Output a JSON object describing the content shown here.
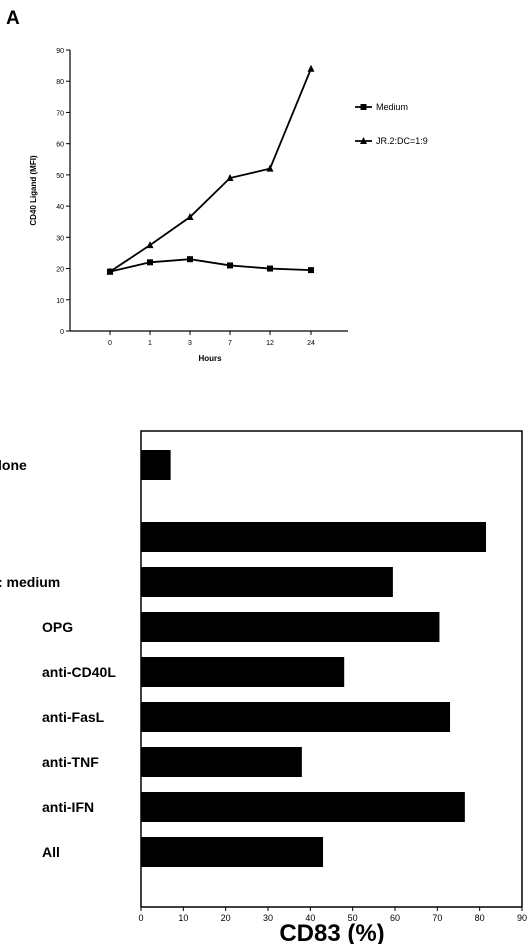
{
  "panel_label": "A",
  "chart_data": [
    {
      "type": "line",
      "title": "",
      "xlabel": "Hours",
      "ylabel": "CD40 Ligand (MFI)",
      "x": [
        "0",
        "1",
        "3",
        "7",
        "12",
        "24"
      ],
      "ylim": [
        0,
        90
      ],
      "yticks": [
        "0",
        "10",
        "20",
        "30",
        "40",
        "50",
        "60",
        "70",
        "80",
        "90"
      ],
      "grid": false,
      "legend_position": "right",
      "series": [
        {
          "name": "Medium",
          "marker": "square",
          "values": [
            19,
            22,
            23,
            21,
            20,
            19.5
          ]
        },
        {
          "name": "JR.2:DC=1:9",
          "marker": "triangle",
          "values": [
            19,
            27.5,
            36.5,
            49,
            52,
            84
          ]
        }
      ]
    },
    {
      "type": "bar",
      "orientation": "horizontal",
      "title": "",
      "xlabel": "CD83 (%)",
      "ylabel": "",
      "categories": [
        "lone",
        "",
        ": medium",
        "OPG",
        "anti-CD40L",
        "anti-FasL",
        "anti-TNF",
        "anti-IFN",
        "All"
      ],
      "values": [
        7,
        81.5,
        59.5,
        70.5,
        48,
        73,
        38,
        76.5,
        43
      ],
      "xlim": [
        0,
        90
      ],
      "xticks": [
        "0",
        "10",
        "20",
        "30",
        "40",
        "50",
        "60",
        "70",
        "80",
        "90"
      ],
      "bar_color": "#000000"
    }
  ]
}
